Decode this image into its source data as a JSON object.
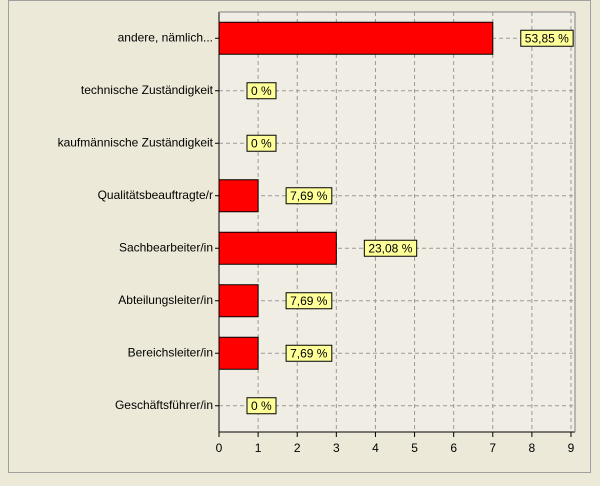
{
  "chart_data": {
    "type": "bar",
    "orientation": "horizontal",
    "categories": [
      "andere, nämlich...",
      "technische Zuständigkeit",
      "kaufmännische Zuständigkeit",
      "Qualitätsbeauftragte/r",
      "Sachbearbeiter/in",
      "Abteilungsleiter/in",
      "Bereichsleiter/in",
      "Geschäftsführer/in"
    ],
    "values": [
      7,
      0,
      0,
      1,
      3,
      1,
      1,
      0
    ],
    "value_labels": [
      "53,85 %",
      "0 %",
      "0 %",
      "7,69 %",
      "23,08 %",
      "7,69 %",
      "7,69 %",
      "0 %"
    ],
    "color": "#ff0000",
    "xlim": [
      0,
      9
    ],
    "xticks": [
      0,
      1,
      2,
      3,
      4,
      5,
      6,
      7,
      8,
      9
    ],
    "grid": true
  }
}
